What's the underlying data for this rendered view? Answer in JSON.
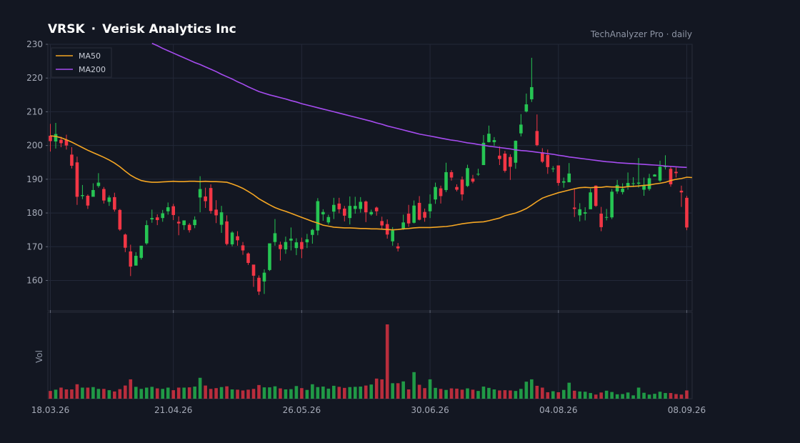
{
  "header": {
    "ticker": "VRSK",
    "separator": "·",
    "company": "Verisk Analytics Inc",
    "source": "TechAnalyzer Pro · daily"
  },
  "colors": {
    "background": "#131722",
    "grid": "#232838",
    "up": "#26c553",
    "down": "#f23645",
    "ma50": "#f5a623",
    "ma200": "#a64cf0",
    "text": "#a6abb8"
  },
  "chart_data": {
    "type": "candlestick",
    "title": "VRSK · Verisk Analytics Inc",
    "price_axis": {
      "ylim": [
        151,
        230
      ],
      "ticks": [
        160,
        170,
        180,
        190,
        200,
        210,
        220,
        230
      ]
    },
    "date_labels": [
      {
        "index": 0,
        "label": "18.03.26"
      },
      {
        "index": 23,
        "label": "21.04.26"
      },
      {
        "index": 47,
        "label": "26.05.26"
      },
      {
        "index": 71,
        "label": "30.06.26"
      },
      {
        "index": 95,
        "label": "04.08.26"
      },
      {
        "index": 119,
        "label": "08.09.26"
      }
    ],
    "volume_label": "Vol",
    "legend": {
      "position": "top-left",
      "entries": [
        "MA50",
        "MA200"
      ]
    },
    "grid": true,
    "candles": [
      [
        202.9,
        201.3,
        206.4,
        198.2,
        3.0
      ],
      [
        201.2,
        203.4,
        206.7,
        199.1,
        3.5
      ],
      [
        201.7,
        200.7,
        202.6,
        199.5,
        4.3
      ],
      [
        201.7,
        200.0,
        203.2,
        198.8,
        3.6
      ],
      [
        197.3,
        194.0,
        199.5,
        193.2,
        3.6
      ],
      [
        195.0,
        184.8,
        196.7,
        182.4,
        5.6
      ],
      [
        185.0,
        185.3,
        188.3,
        184.1,
        4.3
      ],
      [
        185.1,
        182.2,
        185.5,
        181.2,
        4.3
      ],
      [
        184.8,
        186.8,
        188.8,
        184.9,
        4.5
      ],
      [
        188.0,
        189.0,
        191.8,
        187.5,
        3.8
      ],
      [
        187.1,
        183.7,
        187.7,
        182.8,
        3.8
      ],
      [
        183.3,
        184.6,
        185.2,
        182.1,
        3.3
      ],
      [
        184.7,
        181.0,
        186.0,
        180.4,
        2.8
      ],
      [
        180.9,
        175.1,
        181.2,
        174.7,
        3.7
      ],
      [
        173.6,
        169.7,
        173.9,
        168.4,
        5.1
      ],
      [
        168.6,
        164.1,
        170.6,
        161.3,
        7.5
      ],
      [
        164.4,
        167.3,
        168.4,
        164.7,
        4.6
      ],
      [
        166.7,
        170.3,
        170.1,
        166.2,
        3.8
      ],
      [
        171.0,
        176.4,
        177.8,
        170.6,
        4.3
      ],
      [
        178.1,
        178.5,
        181.0,
        177.1,
        4.6
      ],
      [
        178.7,
        177.9,
        179.6,
        176.4,
        4.0
      ],
      [
        178.5,
        179.9,
        180.9,
        177.4,
        3.8
      ],
      [
        180.5,
        181.7,
        183.1,
        179.5,
        4.3
      ],
      [
        182.0,
        179.4,
        182.7,
        177.9,
        3.3
      ],
      [
        177.4,
        176.9,
        179.0,
        173.4,
        4.3
      ],
      [
        176.4,
        177.8,
        177.6,
        175.0,
        4.3
      ],
      [
        176.5,
        174.9,
        177.0,
        174.2,
        4.4
      ],
      [
        176.4,
        178.0,
        179.0,
        175.5,
        4.7
      ],
      [
        184.6,
        187.1,
        190.9,
        180.2,
        8.1
      ],
      [
        184.9,
        183.5,
        187.5,
        181.5,
        5.1
      ],
      [
        187.4,
        180.6,
        188.5,
        179.8,
        3.8
      ],
      [
        181.0,
        179.3,
        183.8,
        177.0,
        4.1
      ],
      [
        176.5,
        180.2,
        182.1,
        174.1,
        4.5
      ],
      [
        177.5,
        170.8,
        179.3,
        170.4,
        4.8
      ],
      [
        170.7,
        174.2,
        174.6,
        170.1,
        3.6
      ],
      [
        173.1,
        171.9,
        174.6,
        170.3,
        3.5
      ],
      [
        170.4,
        168.9,
        171.4,
        167.6,
        3.2
      ],
      [
        168.0,
        165.2,
        168.3,
        164.6,
        3.5
      ],
      [
        164.7,
        161.4,
        164.5,
        158.1,
        3.8
      ],
      [
        160.8,
        156.7,
        161.5,
        155.7,
        5.3
      ],
      [
        159.7,
        162.3,
        163.3,
        156.0,
        4.4
      ],
      [
        163.1,
        171.0,
        170.8,
        162.8,
        4.4
      ],
      [
        171.4,
        174.0,
        178.2,
        170.3,
        4.8
      ],
      [
        170.6,
        169.3,
        171.5,
        165.9,
        4.0
      ],
      [
        169.2,
        171.4,
        173.0,
        167.9,
        3.6
      ],
      [
        171.8,
        172.4,
        175.7,
        168.9,
        3.7
      ],
      [
        169.6,
        171.3,
        172.5,
        167.5,
        4.9
      ],
      [
        171.4,
        169.3,
        172.7,
        166.6,
        4.1
      ],
      [
        171.3,
        172.2,
        173.8,
        169.6,
        3.4
      ],
      [
        173.5,
        175.0,
        175.3,
        170.9,
        5.6
      ],
      [
        174.8,
        183.5,
        184.4,
        173.4,
        4.5
      ],
      [
        179.6,
        180.3,
        181.1,
        177.7,
        4.7
      ],
      [
        177.2,
        178.8,
        179.5,
        176.6,
        3.9
      ],
      [
        180.4,
        182.4,
        184.5,
        178.2,
        5.0
      ],
      [
        182.8,
        181.1,
        184.5,
        179.9,
        4.6
      ],
      [
        181.3,
        179.2,
        182.1,
        177.5,
        4.2
      ],
      [
        178.5,
        182.1,
        184.9,
        176.6,
        4.5
      ],
      [
        181.2,
        182.1,
        184.8,
        179.8,
        4.6
      ],
      [
        181.2,
        183.3,
        184.7,
        180.1,
        4.7
      ],
      [
        183.4,
        180.2,
        183.7,
        177.3,
        5.1
      ],
      [
        179.6,
        180.3,
        181.0,
        179.2,
        5.5
      ],
      [
        181.6,
        180.5,
        181.9,
        179.2,
        7.8
      ],
      [
        177.6,
        176.3,
        178.9,
        175.3,
        7.5
      ],
      [
        176.7,
        173.6,
        178.1,
        172.4,
        28.8
      ],
      [
        171.6,
        174.8,
        175.8,
        170.3,
        6.0
      ],
      [
        170.1,
        169.5,
        171.1,
        168.6,
        6.0
      ],
      [
        175.2,
        177.2,
        179.5,
        175.0,
        6.7
      ],
      [
        179.8,
        176.9,
        182.4,
        175.9,
        3.6
      ],
      [
        177.1,
        182.2,
        183.7,
        176.9,
        10.3
      ],
      [
        183.0,
        178.0,
        185.0,
        177.8,
        5.4
      ],
      [
        180.3,
        178.6,
        181.3,
        177.4,
        4.1
      ],
      [
        180.5,
        182.7,
        185.5,
        178.5,
        7.5
      ],
      [
        184.0,
        187.7,
        189.0,
        182.7,
        4.2
      ],
      [
        187.3,
        185.0,
        188.1,
        182.8,
        3.8
      ],
      [
        186.8,
        192.1,
        194.9,
        186.2,
        3.4
      ],
      [
        192.1,
        190.5,
        192.7,
        189.6,
        4.0
      ],
      [
        187.7,
        186.9,
        188.5,
        186.4,
        3.9
      ],
      [
        189.9,
        185.5,
        190.8,
        183.7,
        3.5
      ],
      [
        188.0,
        193.3,
        194.3,
        187.7,
        4.0
      ],
      [
        190.2,
        189.3,
        191.3,
        188.8,
        3.5
      ],
      [
        191.5,
        191.6,
        193.1,
        191.0,
        3.0
      ],
      [
        194.2,
        200.8,
        203.1,
        194.3,
        4.7
      ],
      [
        201.0,
        203.5,
        205.9,
        200.9,
        4.2
      ],
      [
        201.0,
        201.6,
        202.5,
        199.9,
        3.6
      ],
      [
        197.0,
        196.0,
        199.7,
        194.2,
        3.2
      ],
      [
        197.6,
        192.5,
        198.4,
        192.0,
        3.3
      ],
      [
        196.6,
        193.7,
        197.4,
        189.8,
        3.2
      ],
      [
        194.9,
        201.4,
        201.5,
        193.1,
        3.0
      ],
      [
        203.6,
        206.2,
        209.3,
        202.7,
        3.8
      ],
      [
        210.1,
        212.2,
        215.4,
        209.8,
        6.6
      ],
      [
        213.7,
        217.3,
        226.0,
        212.9,
        7.5
      ],
      [
        204.3,
        200.1,
        209.2,
        199.8,
        5.0
      ],
      [
        198.0,
        195.2,
        199.2,
        194.8,
        4.3
      ],
      [
        197.2,
        193.6,
        198.8,
        191.6,
        2.5
      ],
      [
        193.2,
        193.2,
        193.9,
        192.1,
        2.9
      ],
      [
        194.1,
        188.9,
        194.1,
        188.1,
        2.5
      ],
      [
        189.0,
        189.4,
        190.5,
        187.5,
        3.4
      ],
      [
        189.1,
        191.7,
        194.8,
        190.2,
        6.2
      ],
      [
        181.6,
        181.2,
        187.2,
        178.8,
        3.1
      ],
      [
        179.3,
        181.1,
        182.9,
        177.5,
        2.8
      ],
      [
        179.8,
        180.2,
        181.7,
        177.8,
        2.7
      ],
      [
        181.1,
        186.1,
        187.2,
        181.2,
        2.2
      ],
      [
        188.1,
        182.1,
        188.2,
        181.8,
        1.6
      ],
      [
        179.8,
        175.8,
        181.8,
        174.6,
        2.4
      ],
      [
        178.7,
        178.8,
        181.2,
        177.8,
        3.1
      ],
      [
        178.7,
        186.3,
        187.1,
        178.2,
        2.6
      ],
      [
        186.4,
        188.3,
        189.8,
        185.7,
        1.7
      ],
      [
        186.2,
        187.2,
        188.8,
        185.5,
        1.8
      ],
      [
        188.0,
        188.9,
        192.0,
        186.9,
        2.4
      ],
      [
        188.7,
        188.8,
        190.6,
        187.7,
        1.3
      ],
      [
        188.7,
        189.0,
        196.3,
        187.5,
        4.3
      ],
      [
        186.9,
        188.2,
        190.5,
        185.1,
        2.3
      ],
      [
        187.1,
        190.3,
        191.6,
        186.6,
        1.6
      ],
      [
        190.8,
        191.4,
        191.5,
        190.8,
        1.9
      ],
      [
        189.6,
        193.7,
        195.5,
        189.2,
        2.7
      ],
      [
        193.8,
        193.8,
        197.1,
        192.9,
        2.2
      ],
      [
        193.1,
        188.5,
        193.8,
        187.8,
        2.2
      ],
      [
        192.2,
        191.8,
        193.5,
        190.5,
        1.8
      ],
      [
        186.6,
        186.1,
        188.1,
        181.8,
        1.6
      ],
      [
        184.5,
        175.7,
        185.1,
        174.9,
        3.2
      ]
    ],
    "ma50": [
      202.9,
      202.7,
      202.3,
      201.7,
      201.0,
      200.2,
      199.4,
      198.6,
      197.9,
      197.2,
      196.5,
      195.7,
      194.8,
      193.7,
      192.4,
      191.2,
      190.3,
      189.6,
      189.3,
      189.1,
      189.1,
      189.2,
      189.3,
      189.4,
      189.3,
      189.3,
      189.4,
      189.4,
      189.3,
      189.4,
      189.3,
      189.3,
      189.2,
      189.1,
      188.6,
      188.0,
      187.3,
      186.4,
      185.4,
      184.2,
      183.3,
      182.4,
      181.6,
      181.0,
      180.5,
      179.9,
      179.3,
      178.7,
      178.1,
      177.5,
      177.0,
      176.4,
      176.1,
      175.8,
      175.7,
      175.6,
      175.6,
      175.5,
      175.4,
      175.4,
      175.3,
      175.3,
      175.2,
      175.1,
      175.0,
      175.1,
      175.3,
      175.4,
      175.6,
      175.7,
      175.7,
      175.7,
      175.8,
      175.9,
      176.0,
      176.2,
      176.5,
      176.8,
      177.0,
      177.2,
      177.3,
      177.4,
      177.7,
      178.1,
      178.5,
      179.2,
      179.6,
      180.0,
      180.6,
      181.3,
      182.3,
      183.4,
      184.4,
      185.0,
      185.5,
      186.0,
      186.4,
      186.8,
      187.2,
      187.5,
      187.6,
      187.5,
      187.6,
      187.6,
      187.8,
      187.7,
      187.7,
      187.6,
      187.8,
      187.9,
      188.0,
      188.2,
      188.3,
      188.6,
      188.8,
      189.1,
      189.6,
      190.0,
      190.2,
      190.6,
      190.5
    ],
    "ma200": [
      null,
      null,
      null,
      null,
      null,
      null,
      null,
      null,
      null,
      null,
      null,
      null,
      null,
      null,
      null,
      null,
      null,
      null,
      null,
      230.3,
      229.6,
      228.8,
      228.1,
      227.4,
      226.7,
      226.0,
      225.3,
      224.6,
      224.0,
      223.3,
      222.6,
      221.9,
      221.1,
      220.4,
      219.7,
      218.9,
      218.2,
      217.4,
      216.7,
      216.0,
      215.5,
      215.0,
      214.6,
      214.2,
      213.8,
      213.3,
      212.9,
      212.4,
      212.0,
      211.6,
      211.2,
      210.8,
      210.4,
      210.0,
      209.6,
      209.2,
      208.8,
      208.4,
      208.0,
      207.6,
      207.2,
      206.7,
      206.3,
      205.8,
      205.4,
      205.0,
      204.6,
      204.2,
      203.8,
      203.4,
      203.1,
      202.8,
      202.5,
      202.2,
      201.9,
      201.6,
      201.4,
      201.1,
      200.8,
      200.6,
      200.3,
      200.1,
      199.8,
      199.6,
      199.4,
      199.2,
      199.0,
      198.7,
      198.5,
      198.4,
      198.2,
      198.0,
      197.8,
      197.6,
      197.4,
      197.1,
      196.9,
      196.6,
      196.4,
      196.2,
      196.0,
      195.8,
      195.6,
      195.4,
      195.2,
      195.1,
      194.9,
      194.8,
      194.7,
      194.6,
      194.5,
      194.4,
      194.3,
      194.2,
      194.1,
      193.9,
      193.8,
      193.7,
      193.6,
      193.5
    ]
  }
}
